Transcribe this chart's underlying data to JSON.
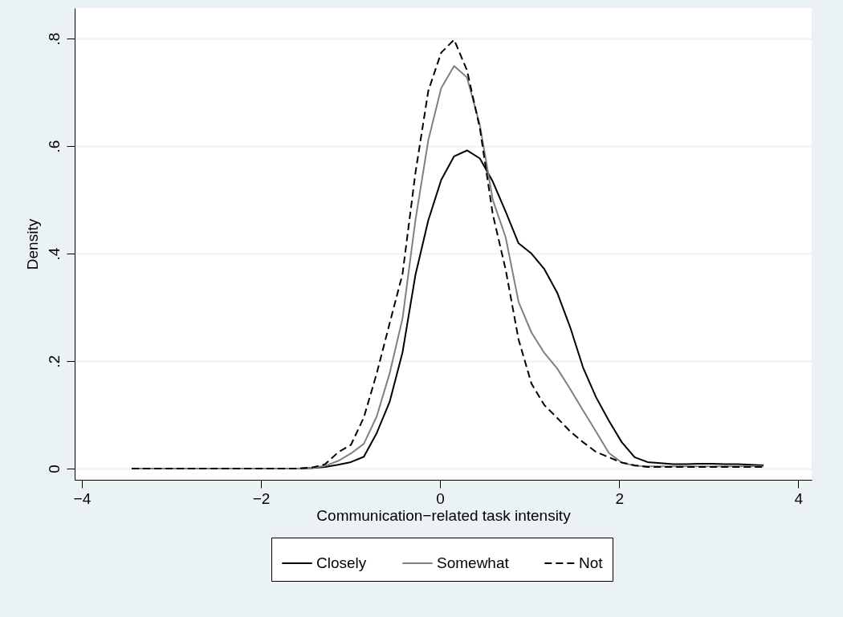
{
  "chart_data": {
    "type": "line",
    "xlabel": "Communication−related task intensity",
    "ylabel": "Density",
    "xlim": [
      -4.08,
      4.15
    ],
    "ylim": [
      -0.021,
      0.857
    ],
    "xticks": [
      {
        "value": -4,
        "label": "−4"
      },
      {
        "value": -2,
        "label": "−2"
      },
      0,
      2,
      4
    ],
    "yticks": [
      0,
      {
        "value": 0.2,
        "label": ".2"
      },
      {
        "value": 0.4,
        "label": ".4"
      },
      {
        "value": 0.6,
        "label": ".6"
      },
      {
        "value": 0.8,
        "label": ".8"
      }
    ],
    "grid": "y",
    "legend": "bottom",
    "x": [
      -3.443,
      -1.715,
      -1.571,
      -1.427,
      -1.283,
      -1.139,
      -0.995,
      -0.851,
      -0.707,
      -0.563,
      -0.419,
      -0.275,
      -0.131,
      0.013,
      0.157,
      0.301,
      0.445,
      0.589,
      0.733,
      0.877,
      1.021,
      1.165,
      1.309,
      1.453,
      1.597,
      1.741,
      1.885,
      2.029,
      2.173,
      2.317,
      2.461,
      2.605,
      2.749,
      2.893,
      3.037,
      3.181,
      3.325,
      3.469,
      3.613
    ],
    "series": [
      {
        "name": "Closely",
        "color": "#000000",
        "line_style": "solid",
        "values": [
          0,
          0,
          0,
          0.001,
          0.003,
          0.007,
          0.012,
          0.022,
          0.066,
          0.124,
          0.216,
          0.36,
          0.462,
          0.537,
          0.581,
          0.592,
          0.577,
          0.534,
          0.478,
          0.419,
          0.4,
          0.371,
          0.327,
          0.263,
          0.188,
          0.133,
          0.089,
          0.049,
          0.021,
          0.012,
          0.01,
          0.008,
          0.008,
          0.009,
          0.009,
          0.008,
          0.008,
          0.007,
          0.006
        ]
      },
      {
        "name": "Somewhat",
        "color": "#808080",
        "line_style": "solid",
        "values": [
          0,
          0,
          0,
          0.001,
          0.005,
          0.014,
          0.028,
          0.046,
          0.097,
          0.177,
          0.279,
          0.462,
          0.611,
          0.708,
          0.749,
          0.728,
          0.639,
          0.5,
          0.43,
          0.31,
          0.253,
          0.215,
          0.186,
          0.148,
          0.108,
          0.069,
          0.029,
          0.011,
          0.005,
          0.004,
          0.004,
          0.004,
          0.004,
          0.004,
          0.004,
          0.004,
          0.004,
          0.004,
          0.004
        ]
      },
      {
        "name": "Not",
        "color": "#000000",
        "line_style": "dashed",
        "values": [
          0,
          0,
          0,
          0.002,
          0.008,
          0.03,
          0.044,
          0.095,
          0.177,
          0.27,
          0.362,
          0.55,
          0.703,
          0.774,
          0.798,
          0.741,
          0.633,
          0.473,
          0.37,
          0.24,
          0.158,
          0.118,
          0.094,
          0.069,
          0.049,
          0.031,
          0.021,
          0.011,
          0.006,
          0.003,
          0.003,
          0.003,
          0.003,
          0.003,
          0.003,
          0.003,
          0.003,
          0.003,
          0.003
        ]
      }
    ]
  }
}
